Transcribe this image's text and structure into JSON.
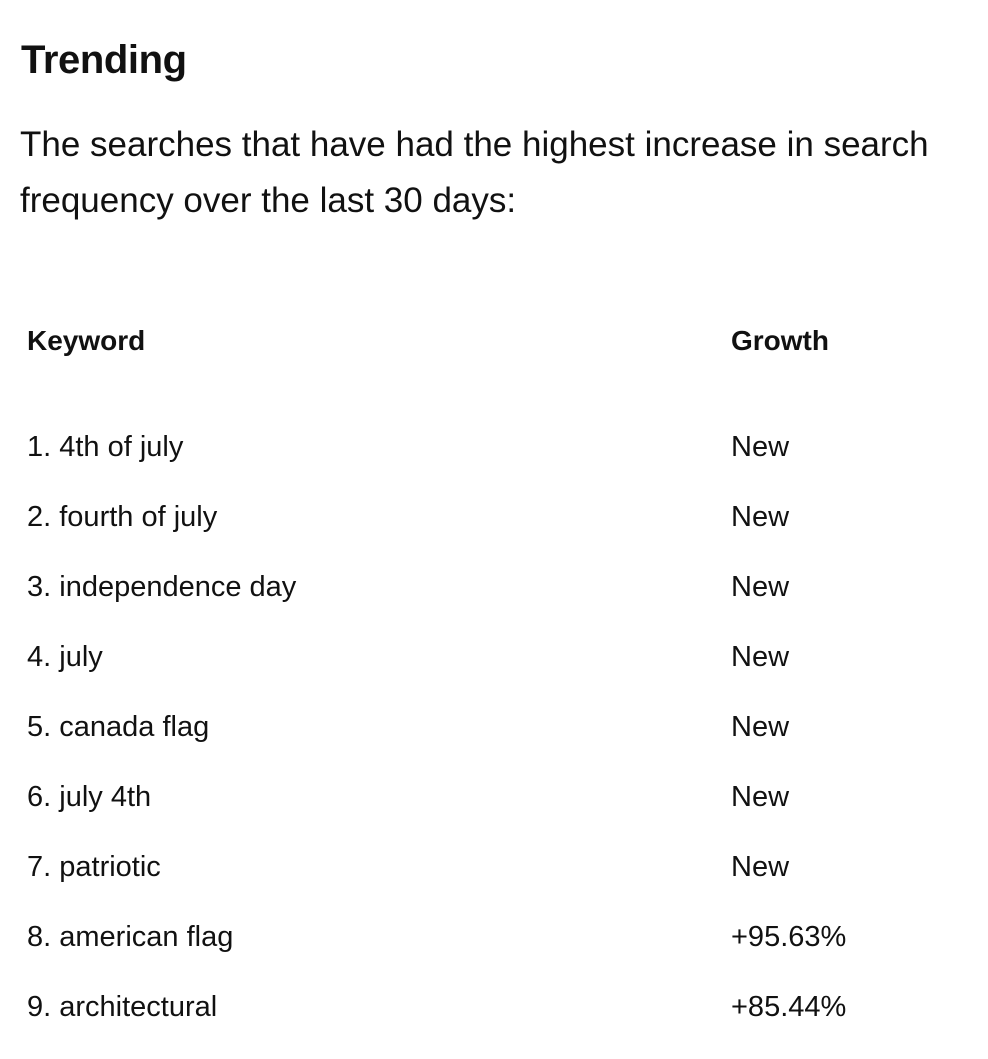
{
  "page": {
    "title": "Trending",
    "description": "The searches that have had the highest increase in search frequency over the last 30 days:"
  },
  "table": {
    "headers": {
      "keyword": "Keyword",
      "growth": "Growth"
    },
    "rows": [
      {
        "rank": "1.",
        "keyword": "4th of july",
        "growth": "New"
      },
      {
        "rank": "2.",
        "keyword": "fourth of july",
        "growth": "New"
      },
      {
        "rank": "3.",
        "keyword": "independence day",
        "growth": "New"
      },
      {
        "rank": "4.",
        "keyword": "july",
        "growth": "New"
      },
      {
        "rank": "5.",
        "keyword": "canada flag",
        "growth": "New"
      },
      {
        "rank": "6.",
        "keyword": "july 4th",
        "growth": "New"
      },
      {
        "rank": "7.",
        "keyword": "patriotic",
        "growth": "New"
      },
      {
        "rank": "8.",
        "keyword": "american flag",
        "growth": "+95.63%"
      },
      {
        "rank": "9.",
        "keyword": "architectural",
        "growth": "+85.44%"
      }
    ]
  }
}
